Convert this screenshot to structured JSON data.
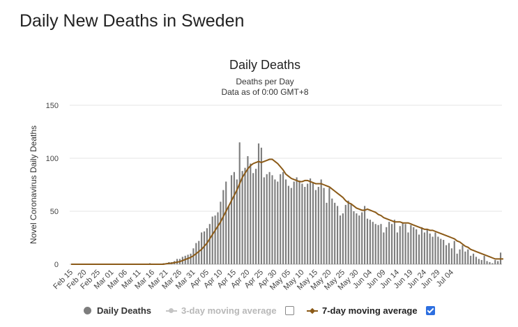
{
  "page": {
    "heading": "Daily New Deaths in Sweden"
  },
  "chart_data": {
    "type": "bar",
    "title": "Daily Deaths",
    "subtitle_1": "Deaths per Day",
    "subtitle_2": "Data as of 0:00 GMT+8",
    "ylabel": "Novel Coronavirus Daily Deaths",
    "ylim": [
      0,
      150
    ],
    "yticks": [
      0,
      50,
      100,
      150
    ],
    "grid": true,
    "legend_placement": "bottom",
    "x_tick_labels": [
      "Feb 15",
      "Feb 20",
      "Feb 25",
      "Mar 01",
      "Mar 06",
      "Mar 11",
      "Mar 16",
      "Mar 21",
      "Mar 26",
      "Mar 31",
      "Apr 05",
      "Apr 10",
      "Apr 15",
      "Apr 20",
      "Apr 25",
      "Apr 30",
      "May 05",
      "May 10",
      "May 15",
      "May 20",
      "May 25",
      "May 30",
      "Jun 04",
      "Jun 09",
      "Jun 14",
      "Jun 19",
      "Jun 24",
      "Jun 29",
      "Jul 04"
    ],
    "x_start": "Feb 15",
    "x_end": "Jul 08",
    "series": [
      {
        "name": "Daily Deaths",
        "type": "bar",
        "color": "#7d7d7d",
        "values": [
          0,
          0,
          0,
          0,
          0,
          0,
          0,
          0,
          0,
          0,
          0,
          0,
          0,
          0,
          0,
          0,
          0,
          0,
          0,
          0,
          0,
          0,
          0,
          0,
          0,
          0,
          0,
          0,
          0,
          1,
          0,
          0,
          0,
          0,
          1,
          1,
          2,
          2,
          3,
          5,
          5,
          7,
          8,
          9,
          10,
          15,
          20,
          22,
          30,
          31,
          34,
          38,
          45,
          46,
          49,
          59,
          70,
          78,
          55,
          84,
          87,
          80,
          115,
          88,
          91,
          102,
          95,
          86,
          90,
          114,
          110,
          82,
          85,
          87,
          84,
          80,
          78,
          85,
          87,
          80,
          74,
          72,
          78,
          82,
          79,
          76,
          73,
          76,
          81,
          77,
          70,
          73,
          80,
          72,
          58,
          72,
          62,
          58,
          55,
          46,
          48,
          56,
          60,
          57,
          50,
          48,
          46,
          49,
          55,
          43,
          42,
          40,
          38,
          37,
          38,
          30,
          35,
          40,
          38,
          42,
          30,
          36,
          39,
          38,
          30,
          37,
          35,
          33,
          28,
          35,
          30,
          33,
          29,
          26,
          30,
          26,
          24,
          23,
          18,
          20,
          15,
          22,
          10,
          14,
          18,
          12,
          14,
          8,
          10,
          7,
          5,
          4,
          8,
          3,
          2,
          1,
          4,
          3,
          11
        ]
      },
      {
        "name": "3-day moving average",
        "type": "line",
        "color": "#b5b5b5",
        "visible": false
      },
      {
        "name": "7-day moving average",
        "type": "line",
        "color": "#8b5a17",
        "visible": true,
        "values": [
          0,
          0,
          0,
          0,
          0,
          0,
          0,
          0,
          0,
          0,
          0,
          0,
          0,
          0,
          0,
          0,
          0,
          0,
          0,
          0,
          0,
          0,
          0,
          0,
          0,
          0,
          0,
          0,
          0,
          0,
          0,
          0,
          0,
          0,
          0,
          0.5,
          0.8,
          1,
          1.5,
          2,
          2.5,
          3.5,
          4.5,
          5.5,
          6.5,
          8,
          10,
          12,
          14,
          17,
          20,
          24,
          28,
          32,
          36,
          40,
          45,
          50,
          55,
          60,
          65,
          70,
          76,
          82,
          86,
          90,
          93,
          95,
          96,
          97,
          96,
          97,
          98,
          99,
          99,
          97,
          95,
          92,
          89,
          85,
          83,
          81,
          80,
          79,
          78,
          78,
          79,
          79,
          78,
          77,
          76,
          76,
          76,
          75,
          74,
          73,
          71,
          69,
          67,
          65,
          63,
          60,
          58,
          57,
          55,
          53,
          52,
          51,
          51,
          52,
          51,
          50,
          49,
          47,
          46,
          44,
          43,
          42,
          41,
          40,
          40,
          40,
          39,
          39,
          39,
          38,
          37,
          36,
          35,
          34,
          33,
          33,
          32,
          32,
          31,
          30,
          29,
          28,
          27,
          26,
          25,
          24,
          22,
          21,
          19,
          17,
          16,
          14,
          13,
          12,
          11,
          10,
          9,
          8,
          7,
          6,
          5,
          5,
          5,
          5
        ]
      }
    ]
  },
  "legend": {
    "items": [
      {
        "label": "Daily Deaths",
        "color": "#7d7d7d",
        "enabled": true,
        "has_checkbox": false
      },
      {
        "label": "3-day moving average",
        "color": "#b5b5b5",
        "enabled": false,
        "has_checkbox": true,
        "checked": false
      },
      {
        "label": "7-day moving average",
        "color": "#8b5a17",
        "enabled": true,
        "has_checkbox": true,
        "checked": true
      }
    ]
  }
}
